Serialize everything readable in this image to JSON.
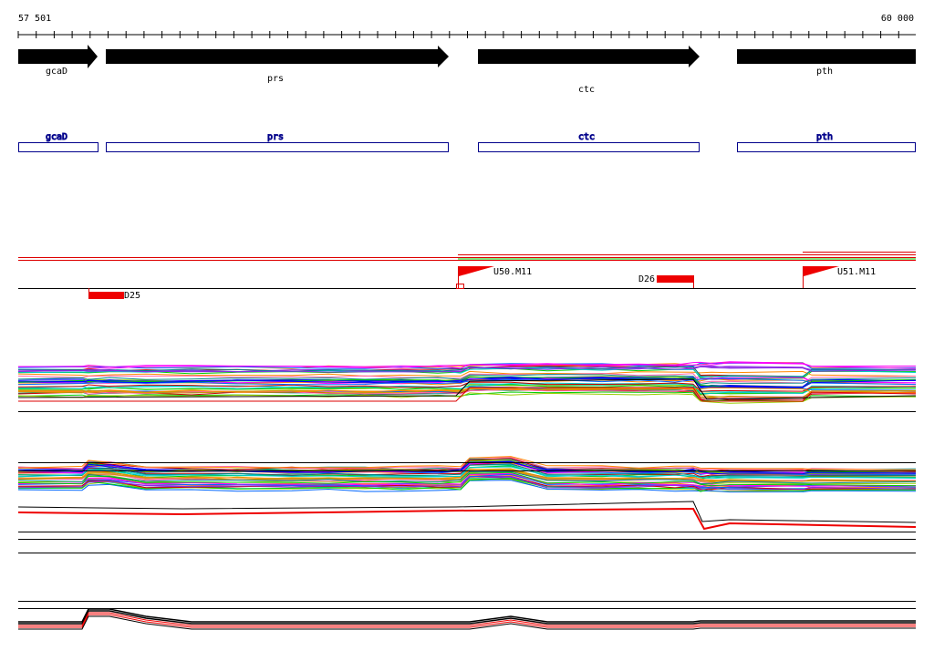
{
  "ruler": {
    "start": "57 501",
    "end": "60 000"
  },
  "genes": [
    {
      "label": "gcaD"
    },
    {
      "label": "prs"
    },
    {
      "label": "ctc"
    },
    {
      "label": "pth"
    }
  ],
  "cds": [
    {
      "label": "gcaD"
    },
    {
      "label": "prs"
    },
    {
      "label": "ctc"
    },
    {
      "label": "pth"
    }
  ],
  "features": [
    {
      "label": "U50.M11"
    },
    {
      "label": "D26"
    },
    {
      "label": "D25"
    },
    {
      "label": "U51.M11"
    }
  ]
}
